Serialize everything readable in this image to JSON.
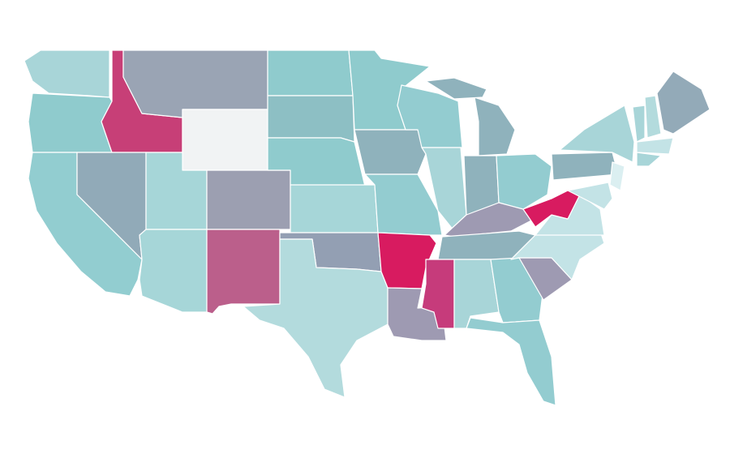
{
  "map": {
    "regions": [
      {
        "color": "#a8d5d8"
      },
      {
        "color": "#8fcbcd"
      },
      {
        "color": "#92cdd0"
      },
      {
        "color": "#c73f77"
      },
      {
        "color": "#91aab8"
      },
      {
        "color": "#9aa4b4"
      },
      {
        "color": "#f1f3f4"
      },
      {
        "color": "#a6d6d8"
      },
      {
        "color": "#a6d6d8"
      },
      {
        "color": "#9c9fb1"
      },
      {
        "color": "#bb5f8b"
      },
      {
        "color": "#8fcbcd"
      },
      {
        "color": "#8dbfc4"
      },
      {
        "color": "#8fcbcd"
      },
      {
        "color": "#a6d6d8"
      },
      {
        "color": "#939fb3"
      },
      {
        "color": "#b3dbdd"
      },
      {
        "color": "#8fcbcd"
      },
      {
        "color": "#8fb2bc"
      },
      {
        "color": "#93ccd0"
      },
      {
        "color": "#d81b60"
      },
      {
        "color": "#9e9ab2"
      },
      {
        "color": "#93ccd0"
      },
      {
        "color": "#a8d5d8"
      },
      {
        "color": "#8fb2bc"
      },
      {
        "color": "#8fb2bc"
      },
      {
        "color": "#8fb2bc"
      },
      {
        "color": "#93ccd0"
      },
      {
        "color": "#9e9ab2"
      },
      {
        "color": "#8fb2bc"
      },
      {
        "color": "#c63b7b"
      },
      {
        "color": "#a8d5d8"
      },
      {
        "color": "#93ccd0"
      },
      {
        "color": "#93ccd0"
      },
      {
        "color": "#9e9ab2"
      },
      {
        "color": "#c3e3e6"
      },
      {
        "color": "#c3e3e6"
      },
      {
        "color": "#d81b60"
      },
      {
        "color": "#8fb2bc"
      },
      {
        "color": "#a8d5d8"
      },
      {
        "color": "#dbeff1"
      },
      {
        "color": "#c3e3e6"
      },
      {
        "color": "#a8d5d8"
      },
      {
        "color": "#b3dbdd"
      },
      {
        "color": "#93aab8"
      },
      {
        "color": "#c3e3e6"
      },
      {
        "color": "#a8d5d8"
      }
    ]
  }
}
